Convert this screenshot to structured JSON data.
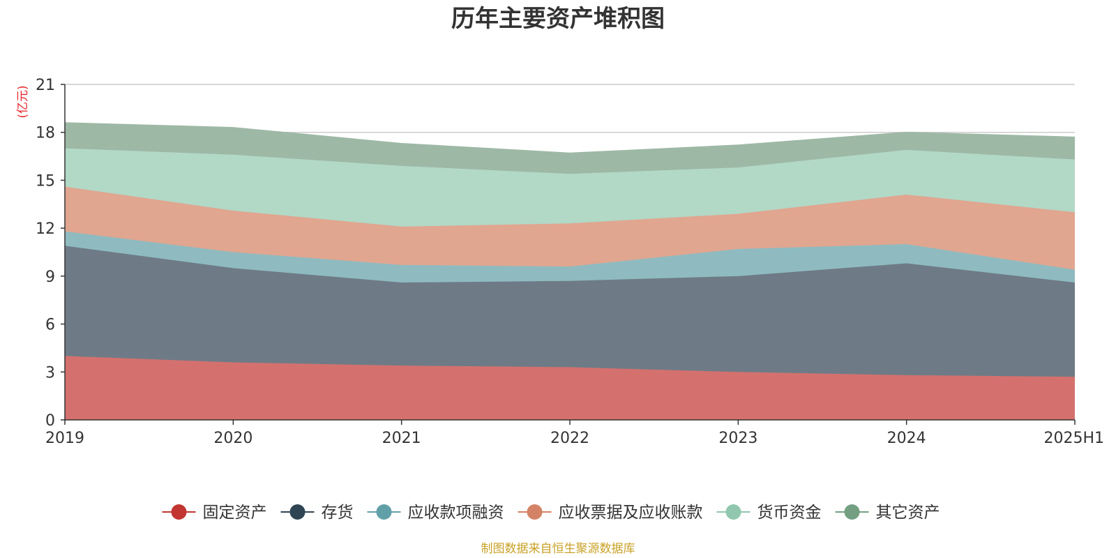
{
  "source_note": "制图数据来自恒生聚源数据库",
  "colors": {
    "unit": "#e8262e",
    "source": "#c9a227",
    "axis": "#333333",
    "grid": "#cccccc"
  },
  "chart_data": {
    "type": "area",
    "stacked": true,
    "title": "历年主要资产堆积图",
    "ylabel": "(亿元)",
    "xlabel": "",
    "categories": [
      "2019",
      "2020",
      "2021",
      "2022",
      "2023",
      "2024",
      "2025H1"
    ],
    "ylim": [
      0,
      21
    ],
    "yticks": [
      0,
      3,
      6,
      9,
      12,
      15,
      18,
      21
    ],
    "grid": true,
    "legend_position": "bottom",
    "series": [
      {
        "name": "固定资产",
        "color": "#c23531",
        "fill": "#d4716e",
        "values": [
          4.0,
          3.6,
          3.4,
          3.3,
          3.0,
          2.8,
          2.7
        ]
      },
      {
        "name": "存货",
        "color": "#2f4554",
        "fill": "#6e7b86",
        "values": [
          6.9,
          5.9,
          5.2,
          5.4,
          6.0,
          7.0,
          5.9
        ]
      },
      {
        "name": "应收款项融资",
        "color": "#61a0a8",
        "fill": "#8fbbc0",
        "values": [
          0.9,
          1.0,
          1.1,
          0.9,
          1.7,
          1.2,
          0.8
        ]
      },
      {
        "name": "应收票据及应收账款",
        "color": "#d48265",
        "fill": "#e0a690",
        "values": [
          2.8,
          2.6,
          2.4,
          2.7,
          2.2,
          3.1,
          3.6
        ]
      },
      {
        "name": "货币资金",
        "color": "#91c7ae",
        "fill": "#b2d8c6",
        "values": [
          2.4,
          3.5,
          3.8,
          3.1,
          2.9,
          2.8,
          3.3
        ]
      },
      {
        "name": "其它资产",
        "color": "#749f83",
        "fill": "#9eb8a6",
        "values": [
          1.6,
          1.7,
          1.4,
          1.3,
          1.4,
          1.1,
          1.4
        ]
      }
    ]
  }
}
